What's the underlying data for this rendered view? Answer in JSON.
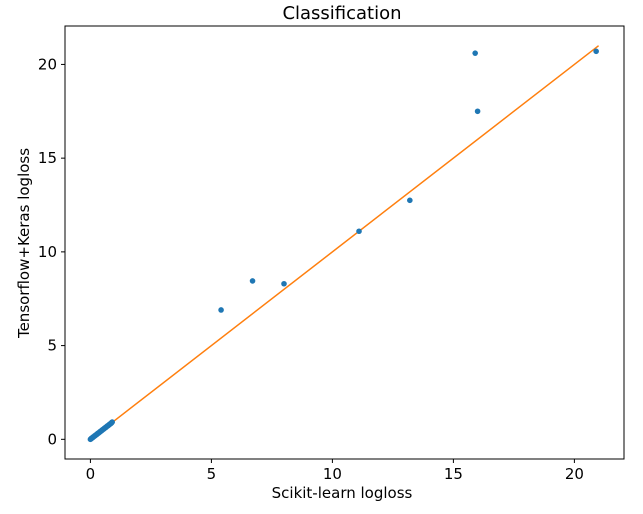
{
  "chart_data": {
    "type": "scatter",
    "title": "Classification",
    "xlabel": "Scikit-learn logloss",
    "ylabel": "Tensorflow+Keras logloss",
    "xlim": [
      -1.05,
      22.05
    ],
    "ylim": [
      -1.05,
      22.05
    ],
    "x_ticks": [
      0,
      5,
      10,
      15,
      20
    ],
    "y_ticks": [
      0,
      5,
      10,
      15,
      20
    ],
    "x_tick_labels": [
      "0",
      "5",
      "10",
      "15",
      "20"
    ],
    "y_tick_labels": [
      "0",
      "5",
      "10",
      "15",
      "20"
    ],
    "grid": false,
    "colors": {
      "points": "#1f77b4",
      "reference_line": "#ff7f0e"
    },
    "series": [
      {
        "type": "scatter",
        "x": [
          0.0,
          0.02,
          0.04,
          0.06,
          0.08,
          0.1,
          0.12,
          0.15,
          0.18,
          0.2,
          0.22,
          0.25,
          0.28,
          0.3,
          0.32,
          0.35,
          0.38,
          0.4,
          0.42,
          0.45,
          0.48,
          0.5,
          0.52,
          0.55,
          0.58,
          0.6,
          0.62,
          0.65,
          0.68,
          0.7,
          0.72,
          0.75,
          0.78,
          0.8,
          0.82,
          0.85,
          0.88,
          0.9,
          5.4,
          6.7,
          8.0,
          11.1,
          13.2,
          15.9,
          16.0,
          20.9
        ],
        "y": [
          0.0,
          0.02,
          0.05,
          0.06,
          0.09,
          0.1,
          0.13,
          0.15,
          0.19,
          0.2,
          0.23,
          0.25,
          0.29,
          0.3,
          0.33,
          0.35,
          0.39,
          0.4,
          0.43,
          0.45,
          0.49,
          0.5,
          0.53,
          0.55,
          0.59,
          0.6,
          0.63,
          0.65,
          0.69,
          0.7,
          0.73,
          0.75,
          0.79,
          0.8,
          0.83,
          0.85,
          0.89,
          0.92,
          6.9,
          8.45,
          8.3,
          11.1,
          12.75,
          20.6,
          17.5,
          20.7
        ]
      },
      {
        "type": "line",
        "x": [
          0,
          21
        ],
        "y": [
          0,
          21
        ]
      }
    ]
  }
}
